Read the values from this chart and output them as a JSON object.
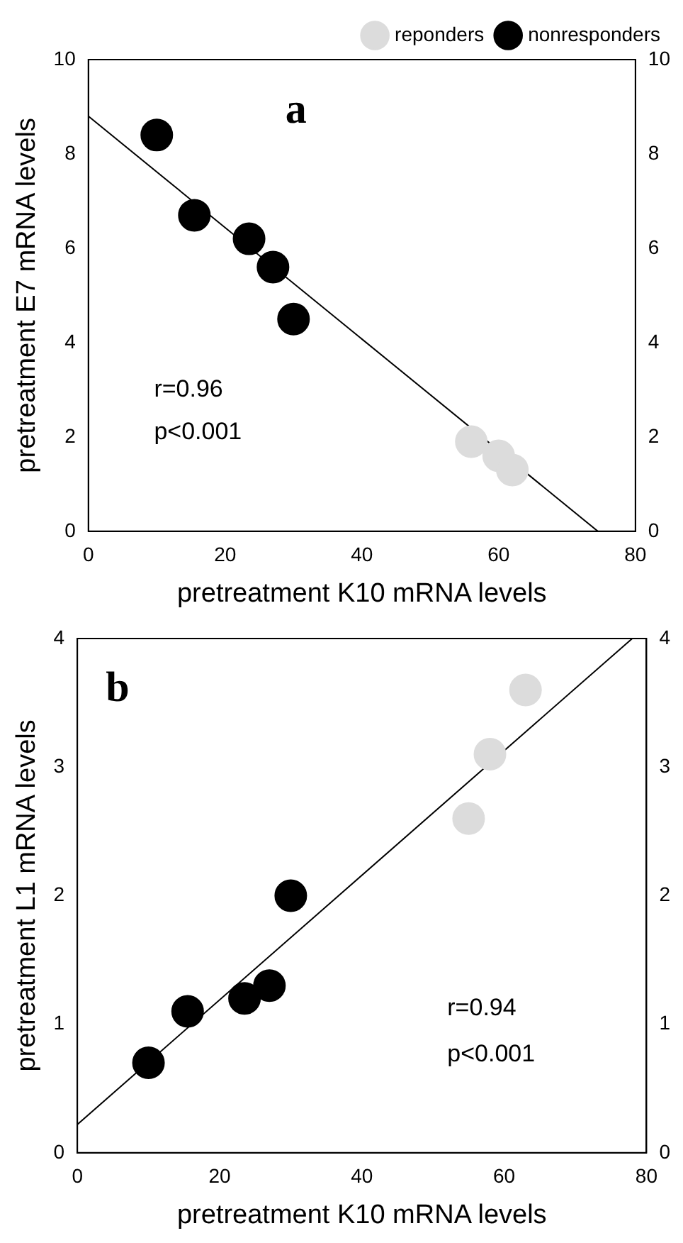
{
  "chart_data": [
    {
      "type": "scatter",
      "xlabel": "pretreatment K10 mRNA levels",
      "ylabel": "pretreatment E7 mRNA levels",
      "xlim": [
        0,
        80
      ],
      "xticks": [
        0,
        20,
        40,
        60,
        80
      ],
      "ylim": [
        0,
        10
      ],
      "yticks": [
        0,
        2,
        4,
        6,
        8,
        10
      ],
      "y2lim": [
        0,
        10
      ],
      "y2ticks": [
        0,
        2,
        4,
        6,
        8,
        10
      ],
      "grid": false,
      "legend": "top right",
      "marker": "circle",
      "annotations": [
        "a",
        "r=0.96",
        "p<0.001"
      ],
      "series": [
        {
          "name": "reponders",
          "color": "#dcdcdc",
          "x": [
            56,
            60,
            62
          ],
          "values": [
            1.9,
            1.6,
            1.3
          ]
        },
        {
          "name": "nonresponders",
          "color": "#000000",
          "x": [
            10,
            15.5,
            23.5,
            27,
            30
          ],
          "values": [
            8.4,
            6.7,
            6.2,
            5.6,
            4.5
          ]
        },
        {
          "type": "line",
          "color": "#000000",
          "marker": "none",
          "line_style": "solid",
          "x": [
            0,
            74.5
          ],
          "values": [
            8.8,
            0
          ]
        }
      ]
    },
    {
      "type": "scatter",
      "xlabel": "pretreatment K10 mRNA levels",
      "ylabel": "pretreatment L1 mRNA levels",
      "xlim": [
        0,
        80
      ],
      "xticks": [
        0,
        20,
        40,
        60,
        80
      ],
      "ylim": [
        0,
        4
      ],
      "yticks": [
        0,
        1,
        2,
        3,
        4
      ],
      "y2lim": [
        0,
        4
      ],
      "y2ticks": [
        0,
        1,
        2,
        3,
        4
      ],
      "grid": false,
      "legend": false,
      "marker": "circle",
      "annotations": [
        "b",
        "r=0.94",
        "p<0.001"
      ],
      "series": [
        {
          "color": "#dcdcdc",
          "x": [
            55,
            58,
            63
          ],
          "values": [
            2.6,
            3.1,
            3.6
          ]
        },
        {
          "color": "#000000",
          "x": [
            10,
            15.5,
            23.5,
            27,
            30
          ],
          "values": [
            0.7,
            1.1,
            1.2,
            1.3,
            2.0
          ]
        },
        {
          "type": "line",
          "color": "#000000",
          "marker": "none",
          "line_style": "solid",
          "x": [
            0,
            78
          ],
          "values": [
            0.22,
            4.0
          ]
        }
      ]
    }
  ]
}
